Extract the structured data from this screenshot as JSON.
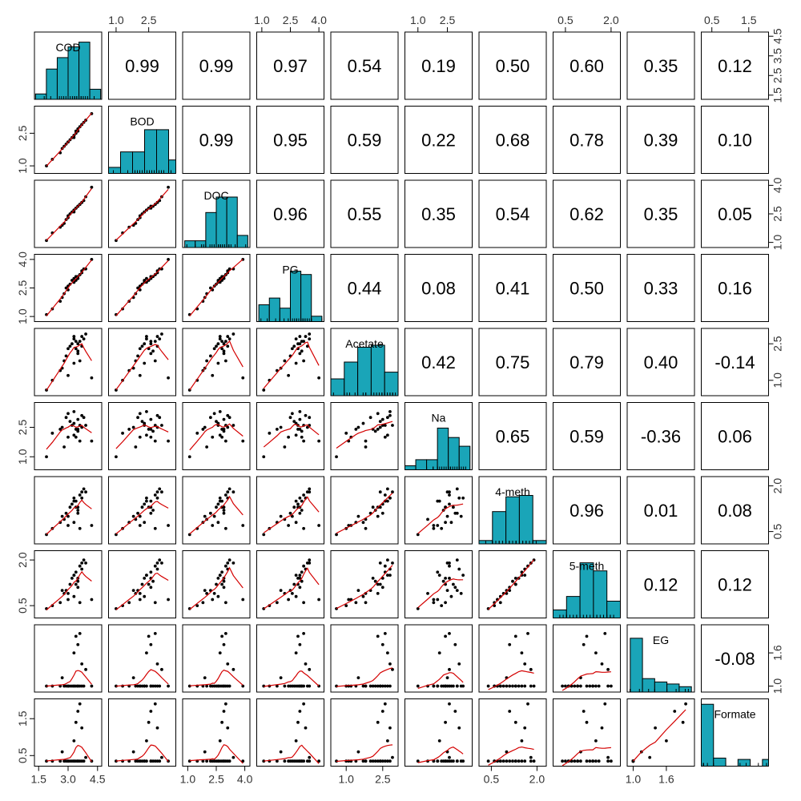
{
  "chart_data": {
    "type": "scatter-matrix",
    "variables": [
      "COD",
      "BOD",
      "DOC",
      "PG",
      "Acetate",
      "Na",
      "4-meth",
      "5-meth",
      "EG",
      "Formate"
    ],
    "correlations": [
      [
        null,
        0.99,
        0.99,
        0.97,
        0.54,
        0.19,
        0.5,
        0.6,
        0.35,
        0.12
      ],
      [
        null,
        null,
        0.99,
        0.95,
        0.59,
        0.22,
        0.68,
        0.78,
        0.39,
        0.1
      ],
      [
        null,
        null,
        null,
        0.96,
        0.55,
        0.35,
        0.54,
        0.62,
        0.35,
        0.05
      ],
      [
        null,
        null,
        null,
        null,
        0.44,
        0.08,
        0.41,
        0.5,
        0.33,
        0.16
      ],
      [
        null,
        null,
        null,
        null,
        null,
        0.42,
        0.75,
        0.79,
        0.4,
        -0.14
      ],
      [
        null,
        null,
        null,
        null,
        null,
        null,
        0.65,
        0.59,
        -0.36,
        0.06
      ],
      [
        null,
        null,
        null,
        null,
        null,
        null,
        null,
        0.96,
        0.01,
        0.08
      ],
      [
        null,
        null,
        null,
        null,
        null,
        null,
        null,
        null,
        0.12,
        0.12
      ],
      [
        null,
        null,
        null,
        null,
        null,
        null,
        null,
        null,
        null,
        -0.08
      ],
      [
        null,
        null,
        null,
        null,
        null,
        null,
        null,
        null,
        null,
        null
      ]
    ],
    "correlation_labels": [
      [
        null,
        "0.99",
        "0.99",
        "0.97",
        "0.54",
        "0.19",
        "0.50",
        "0.60",
        "0.35",
        "0.12"
      ],
      [
        null,
        null,
        "0.99",
        "0.95",
        "0.59",
        "0.22",
        "0.68",
        "0.78",
        "0.39",
        "0.10"
      ],
      [
        null,
        null,
        null,
        "0.96",
        "0.55",
        "0.35",
        "0.54",
        "0.62",
        "0.35",
        "0.05"
      ],
      [
        null,
        null,
        null,
        null,
        "0.44",
        "0.08",
        "0.41",
        "0.50",
        "0.33",
        "0.16"
      ],
      [
        null,
        null,
        null,
        null,
        null,
        "0.42",
        "0.75",
        "0.79",
        "0.40",
        "-0.14"
      ],
      [
        null,
        null,
        null,
        null,
        null,
        null,
        "0.65",
        "0.59",
        "-0.36",
        "0.06"
      ],
      [
        null,
        null,
        null,
        null,
        null,
        null,
        null,
        "0.96",
        "0.01",
        "0.08"
      ],
      [
        null,
        null,
        null,
        null,
        null,
        null,
        null,
        null,
        "0.12",
        "0.12"
      ],
      [
        null,
        null,
        null,
        null,
        null,
        null,
        null,
        null,
        null,
        "-0.08"
      ],
      [
        null,
        null,
        null,
        null,
        null,
        null,
        null,
        null,
        null,
        null
      ]
    ],
    "ranges": [
      [
        1.45,
        4.55
      ],
      [
        0.8,
        3.6
      ],
      [
        0.9,
        4.1
      ],
      [
        0.9,
        4.1
      ],
      [
        0.5,
        3.0
      ],
      [
        0.5,
        3.6
      ],
      [
        0.2,
        2.2
      ],
      [
        0.2,
        2.2
      ],
      [
        0.95,
        2.05
      ],
      [
        0.3,
        1.95
      ]
    ],
    "top_axis_labels": [
      null,
      [
        "1.0",
        "2.5"
      ],
      null,
      [
        "1.0",
        "2.5",
        "4.0"
      ],
      null,
      [
        "1.0",
        "2.5"
      ],
      null,
      [
        "0.5",
        "2.0"
      ],
      null,
      [
        "0.5",
        "1.5"
      ]
    ],
    "bottom_axis_labels": [
      [
        "1.5",
        "3.0",
        "4.5"
      ],
      null,
      [
        "1.0",
        "2.5",
        "4.0"
      ],
      null,
      [
        "1.0",
        "2.5"
      ],
      null,
      [
        "0.5",
        "2.0"
      ],
      null,
      [
        "1.0",
        "1.6"
      ],
      null
    ],
    "left_axis_labels": [
      null,
      [
        "1.0",
        "2.5"
      ],
      null,
      [
        "1.0",
        "2.5",
        "4.0"
      ],
      null,
      [
        "1.0",
        "2.5"
      ],
      null,
      [
        "0.5",
        "2.0"
      ],
      null,
      [
        "0.5",
        "1.5"
      ]
    ],
    "right_axis_labels": [
      [
        "1.5",
        "2.5",
        "3.5",
        "4.5"
      ],
      null,
      [
        "1.0",
        "2.5",
        "4.0"
      ],
      null,
      [
        "1.0",
        "2.5"
      ],
      null,
      [
        "0.5",
        "2.0"
      ],
      null,
      [
        "1.0",
        "1.6"
      ],
      null
    ],
    "histograms": [
      {
        "breaks": [
          1.5,
          2.0,
          2.5,
          3.0,
          3.5,
          4.0,
          4.5
        ],
        "heights": [
          0.08,
          0.45,
          0.62,
          0.78,
          0.85,
          0.15
        ]
      },
      {
        "breaks": [
          0.8,
          1.3,
          1.8,
          2.3,
          2.8,
          3.3,
          3.6
        ],
        "heights": [
          0.09,
          0.32,
          0.32,
          0.65,
          0.65,
          0.2
        ]
      },
      {
        "breaks": [
          1.0,
          1.5,
          2.0,
          2.5,
          3.0,
          3.5,
          4.0
        ],
        "heights": [
          0.1,
          0.1,
          0.52,
          0.75,
          0.75,
          0.18
        ]
      },
      {
        "breaks": [
          1.0,
          1.5,
          2.0,
          2.5,
          3.0,
          3.5,
          4.0
        ],
        "heights": [
          0.25,
          0.35,
          0.2,
          0.75,
          0.7,
          0.08
        ]
      },
      {
        "breaks": [
          0.5,
          1.0,
          1.5,
          2.0,
          2.5,
          3.0
        ],
        "heights": [
          0.25,
          0.5,
          0.72,
          0.75,
          0.35
        ]
      },
      {
        "breaks": [
          0.5,
          1.0,
          1.5,
          2.0,
          2.5,
          3.0,
          3.5
        ],
        "heights": [
          0.06,
          0.15,
          0.15,
          0.62,
          0.48,
          0.35
        ]
      },
      {
        "breaks": [
          0.2,
          0.6,
          1.0,
          1.4,
          1.8,
          2.2
        ],
        "heights": [
          0.05,
          0.48,
          0.7,
          0.72,
          0.05
        ]
      },
      {
        "breaks": [
          0.2,
          0.6,
          1.0,
          1.4,
          1.8,
          2.2
        ],
        "heights": [
          0.12,
          0.32,
          0.82,
          0.7,
          0.25
        ]
      },
      {
        "breaks": [
          1.0,
          1.2,
          1.4,
          1.6,
          1.8,
          2.0
        ],
        "heights": [
          0.8,
          0.2,
          0.15,
          0.12,
          0.08
        ]
      },
      {
        "breaks": [
          0.3,
          0.6,
          0.9,
          1.2,
          1.5,
          1.8,
          1.95
        ],
        "heights": [
          0.92,
          0.12,
          0.0,
          0.1,
          0.0,
          0.1
        ]
      }
    ],
    "observations": [
      [
        1.9,
        1.0,
        1.1,
        1.1,
        0.6,
        1.0,
        0.4,
        0.4,
        1.0,
        0.35
      ],
      [
        2.2,
        1.3,
        1.5,
        1.4,
        1.0,
        2.2,
        0.6,
        0.5,
        1.0,
        0.35
      ],
      [
        2.6,
        1.6,
        1.8,
        1.8,
        1.4,
        2.4,
        0.8,
        0.6,
        1.0,
        0.35
      ],
      [
        2.8,
        1.9,
        2.0,
        2.2,
        1.8,
        1.5,
        0.9,
        0.9,
        1.0,
        0.35
      ],
      [
        2.9,
        2.0,
        2.2,
        2.5,
        2.0,
        3.0,
        1.1,
        1.0,
        1.0,
        0.35
      ],
      [
        3.0,
        2.1,
        2.4,
        2.6,
        2.3,
        3.2,
        1.0,
        0.9,
        1.0,
        0.35
      ],
      [
        3.1,
        2.2,
        2.5,
        2.7,
        2.4,
        2.8,
        1.3,
        1.2,
        1.0,
        0.35
      ],
      [
        3.2,
        2.3,
        2.6,
        2.9,
        2.5,
        2.6,
        1.4,
        1.4,
        1.0,
        0.35
      ],
      [
        3.3,
        2.4,
        2.7,
        3.0,
        2.8,
        3.3,
        1.6,
        1.5,
        1.0,
        0.35
      ],
      [
        3.4,
        2.6,
        2.8,
        3.1,
        2.6,
        2.0,
        1.5,
        1.6,
        1.0,
        0.35
      ],
      [
        3.5,
        2.7,
        2.9,
        3.1,
        2.2,
        2.3,
        1.2,
        1.3,
        1.0,
        0.35
      ],
      [
        3.6,
        2.8,
        3.0,
        3.2,
        1.8,
        1.8,
        0.6,
        0.6,
        1.0,
        0.35
      ],
      [
        3.7,
        2.9,
        3.1,
        3.4,
        2.4,
        2.5,
        1.8,
        1.9,
        1.0,
        0.35
      ],
      [
        3.8,
        3.0,
        3.2,
        3.5,
        2.7,
        3.0,
        1.9,
        2.0,
        1.0,
        0.35
      ],
      [
        3.3,
        2.3,
        2.6,
        2.8,
        1.7,
        2.7,
        0.8,
        0.8,
        1.0,
        0.35
      ],
      [
        3.0,
        2.1,
        2.3,
        2.4,
        1.2,
        2.0,
        0.7,
        0.7,
        1.0,
        0.35
      ],
      [
        3.5,
        2.6,
        2.9,
        3.0,
        2.1,
        2.4,
        1.3,
        1.4,
        1.0,
        0.35
      ],
      [
        4.2,
        3.4,
        3.9,
        4.0,
        1.1,
        1.8,
        0.7,
        0.7,
        1.0,
        0.35
      ],
      [
        3.5,
        2.6,
        2.9,
        3.0,
        2.5,
        2.9,
        1.1,
        1.1,
        1.75,
        1.7
      ],
      [
        3.4,
        2.5,
        2.8,
        2.9,
        2.3,
        2.4,
        1.3,
        1.2,
        1.9,
        1.4
      ],
      [
        3.6,
        2.8,
        3.0,
        3.2,
        2.6,
        2.6,
        1.7,
        1.8,
        1.95,
        1.9
      ],
      [
        3.3,
        2.4,
        2.7,
        2.8,
        2.7,
        2.1,
        1.5,
        1.5,
        1.6,
        0.9
      ],
      [
        3.7,
        2.9,
        3.1,
        3.3,
        2.8,
        3.1,
        1.6,
        1.7,
        1.4,
        1.25
      ],
      [
        2.7,
        1.8,
        1.9,
        2.0,
        1.5,
        2.5,
        1.0,
        1.0,
        1.15,
        0.6
      ],
      [
        3.9,
        3.1,
        3.4,
        3.5,
        2.9,
        2.6,
        1.8,
        1.9,
        1.3,
        0.45
      ]
    ],
    "smooth_color": "#d40000",
    "bar_color": "#1aa5b8",
    "point_color": "#000000",
    "grid": false
  }
}
